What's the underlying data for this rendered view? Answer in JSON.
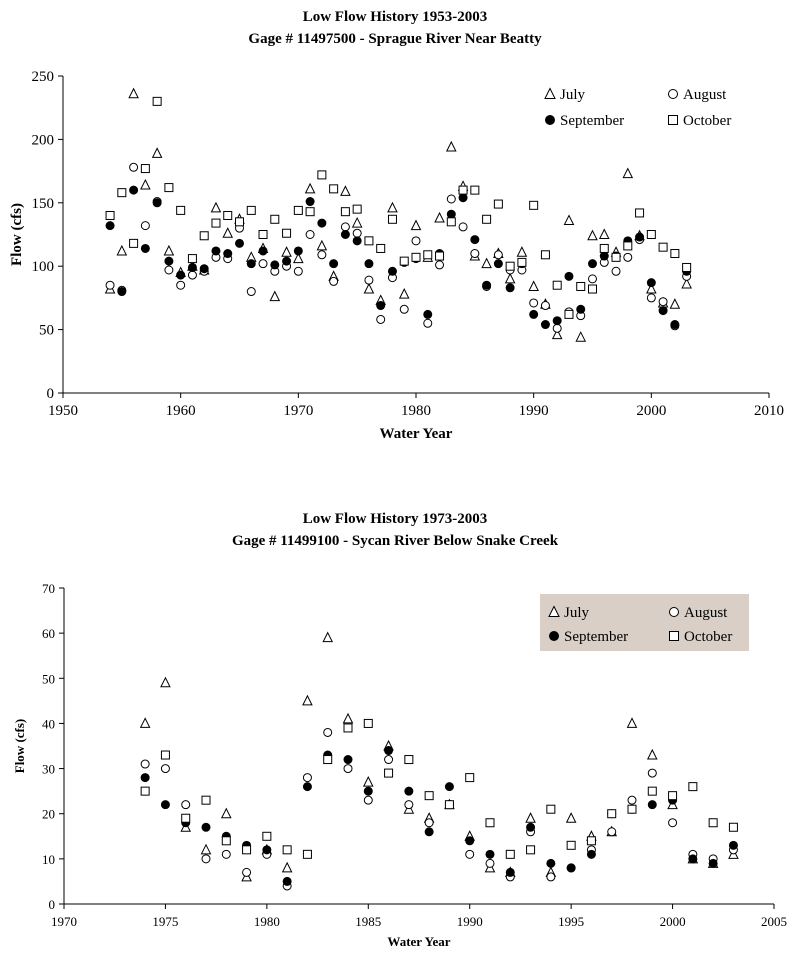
{
  "chart_data": [
    {
      "type": "scatter",
      "title": "Low Flow History 1953-2003",
      "subtitle": "Gage # 11497500 - Sprague River Near Beatty",
      "xlabel": "Water Year",
      "ylabel": "Flow (cfs)",
      "xlim": [
        1950,
        2010
      ],
      "ylim": [
        0,
        250
      ],
      "xticks": [
        1950,
        1960,
        1970,
        1980,
        1990,
        2000,
        2010
      ],
      "yticks": [
        0,
        50,
        100,
        150,
        200,
        250
      ],
      "grid": false,
      "legend": "top-right",
      "series": [
        {
          "name": "July",
          "marker": "triangle",
          "x": [
            1954,
            1955,
            1956,
            1957,
            1958,
            1959,
            1960,
            1961,
            1962,
            1963,
            1964,
            1965,
            1966,
            1967,
            1968,
            1969,
            1970,
            1971,
            1972,
            1973,
            1974,
            1975,
            1976,
            1977,
            1978,
            1979,
            1980,
            1981,
            1982,
            1983,
            1984,
            1985,
            1986,
            1987,
            1988,
            1989,
            1990,
            1991,
            1992,
            1993,
            1994,
            1995,
            1996,
            1997,
            1998,
            1999,
            2000,
            2001,
            2002,
            2003
          ],
          "y": [
            82,
            112,
            236,
            164,
            189,
            112,
            95,
            100,
            97,
            146,
            126,
            137,
            107,
            114,
            76,
            111,
            106,
            161,
            116,
            92,
            159,
            134,
            82,
            73,
            146,
            78,
            132,
            107,
            138,
            194,
            163,
            108,
            102,
            110,
            90,
            111,
            84,
            70,
            46,
            136,
            44,
            124,
            125,
            111,
            173,
            124,
            82,
            71,
            70,
            86
          ]
        },
        {
          "name": "August",
          "marker": "circle",
          "x": [
            1954,
            1955,
            1956,
            1957,
            1958,
            1959,
            1960,
            1961,
            1962,
            1963,
            1964,
            1965,
            1966,
            1967,
            1968,
            1969,
            1970,
            1971,
            1972,
            1973,
            1974,
            1975,
            1976,
            1977,
            1978,
            1979,
            1980,
            1981,
            1982,
            1983,
            1984,
            1985,
            1986,
            1987,
            1988,
            1989,
            1990,
            1991,
            1992,
            1993,
            1994,
            1995,
            1996,
            1997,
            1998,
            1999,
            2000,
            2001,
            2002,
            2003
          ],
          "y": [
            85,
            81,
            178,
            132,
            151,
            97,
            85,
            93,
            96,
            107,
            106,
            130,
            80,
            102,
            96,
            100,
            96,
            125,
            109,
            88,
            131,
            126,
            89,
            58,
            91,
            66,
            120,
            55,
            101,
            153,
            131,
            110,
            84,
            109,
            97,
            97,
            71,
            69,
            51,
            64,
            61,
            90,
            103,
            96,
            107,
            121,
            75,
            72,
            53,
            92
          ]
        },
        {
          "name": "September",
          "marker": "filled-circle",
          "x": [
            1954,
            1955,
            1956,
            1957,
            1958,
            1959,
            1960,
            1961,
            1962,
            1963,
            1964,
            1965,
            1966,
            1967,
            1968,
            1969,
            1970,
            1971,
            1972,
            1973,
            1974,
            1975,
            1976,
            1977,
            1978,
            1979,
            1980,
            1981,
            1982,
            1983,
            1984,
            1985,
            1986,
            1987,
            1988,
            1989,
            1990,
            1991,
            1992,
            1993,
            1994,
            1995,
            1996,
            1997,
            1998,
            1999,
            2000,
            2001,
            2002,
            2003
          ],
          "y": [
            132,
            80,
            160,
            114,
            150,
            104,
            93,
            99,
            98,
            112,
            110,
            118,
            102,
            112,
            101,
            104,
            112,
            151,
            134,
            102,
            125,
            120,
            102,
            69,
            96,
            103,
            106,
            62,
            110,
            141,
            154,
            121,
            85,
            102,
            83,
            102,
            62,
            54,
            57,
            92,
            66,
            102,
            108,
            108,
            120,
            123,
            87,
            65,
            54,
            96
          ]
        },
        {
          "name": "October",
          "marker": "square",
          "x": [
            1954,
            1955,
            1956,
            1957,
            1958,
            1959,
            1960,
            1961,
            1962,
            1963,
            1964,
            1965,
            1966,
            1967,
            1968,
            1969,
            1970,
            1971,
            1972,
            1973,
            1974,
            1975,
            1976,
            1977,
            1978,
            1979,
            1980,
            1981,
            1982,
            1983,
            1984,
            1985,
            1986,
            1987,
            1988,
            1989,
            1990,
            1991,
            1992,
            1993,
            1994,
            1995,
            1996,
            1997,
            1998,
            1999,
            2000,
            2001,
            2002,
            2003
          ],
          "y": [
            140,
            158,
            118,
            177,
            230,
            162,
            144,
            106,
            124,
            134,
            140,
            135,
            144,
            125,
            137,
            126,
            144,
            143,
            172,
            161,
            143,
            145,
            120,
            114,
            137,
            104,
            107,
            109,
            108,
            135,
            160,
            160,
            137,
            149,
            100,
            103,
            148,
            109,
            85,
            62,
            84,
            82,
            114,
            107,
            116,
            142,
            125,
            115,
            110,
            99
          ]
        }
      ]
    },
    {
      "type": "scatter",
      "title": "Low Flow History 1973-2003",
      "subtitle": "Gage # 11499100 - Sycan River Below Snake Creek",
      "xlabel": "Water Year",
      "ylabel": "Flow (cfs)",
      "xlim": [
        1970,
        2005
      ],
      "ylim": [
        0,
        70
      ],
      "xticks": [
        1970,
        1975,
        1980,
        1985,
        1990,
        1995,
        2000,
        2005
      ],
      "yticks": [
        0,
        10,
        20,
        30,
        40,
        50,
        60,
        70
      ],
      "grid": false,
      "legend": "top-right",
      "legend_bg": "#d9cfc7",
      "series": [
        {
          "name": "July",
          "marker": "triangle",
          "x": [
            1974,
            1975,
            1976,
            1977,
            1978,
            1979,
            1980,
            1981,
            1982,
            1983,
            1984,
            1985,
            1986,
            1987,
            1988,
            1989,
            1990,
            1991,
            1992,
            1993,
            1994,
            1995,
            1996,
            1997,
            1998,
            1999,
            2000,
            2001,
            2002,
            2003
          ],
          "y": [
            40,
            49,
            17,
            12,
            20,
            6,
            12,
            8,
            45,
            59,
            41,
            27,
            35,
            21,
            19,
            22,
            15,
            8,
            7,
            19,
            7,
            19,
            15,
            16,
            40,
            33,
            22,
            10,
            9,
            11
          ]
        },
        {
          "name": "August",
          "marker": "circle",
          "x": [
            1974,
            1975,
            1976,
            1977,
            1978,
            1979,
            1980,
            1981,
            1982,
            1983,
            1984,
            1985,
            1986,
            1987,
            1988,
            1989,
            1990,
            1991,
            1992,
            1993,
            1994,
            1995,
            1996,
            1997,
            1998,
            1999,
            2000,
            2001,
            2002,
            2003
          ],
          "y": [
            31,
            30,
            22,
            10,
            11,
            7,
            11,
            4,
            28,
            38,
            30,
            23,
            32,
            22,
            18,
            22,
            11,
            9,
            6,
            16,
            6,
            8,
            12,
            16,
            23,
            29,
            18,
            11,
            10,
            12
          ]
        },
        {
          "name": "September",
          "marker": "filled-circle",
          "x": [
            1974,
            1975,
            1976,
            1977,
            1978,
            1979,
            1980,
            1981,
            1982,
            1983,
            1984,
            1985,
            1986,
            1987,
            1988,
            1989,
            1990,
            1991,
            1992,
            1993,
            1994,
            1995,
            1996,
            1997,
            1998,
            1999,
            2000,
            2001,
            2002,
            2003
          ],
          "y": [
            28,
            22,
            18,
            17,
            15,
            13,
            12,
            5,
            26,
            33,
            32,
            25,
            34,
            25,
            16,
            26,
            14,
            11,
            7,
            17,
            9,
            8,
            11,
            20,
            21,
            22,
            23,
            10,
            9,
            13
          ]
        },
        {
          "name": "October",
          "marker": "square",
          "x": [
            1974,
            1975,
            1976,
            1977,
            1978,
            1979,
            1980,
            1981,
            1982,
            1983,
            1984,
            1985,
            1986,
            1987,
            1988,
            1989,
            1990,
            1991,
            1992,
            1993,
            1994,
            1995,
            1996,
            1997,
            1998,
            1999,
            2000,
            2001,
            2002,
            2003
          ],
          "y": [
            25,
            33,
            19,
            23,
            14,
            12,
            15,
            12,
            11,
            32,
            39,
            40,
            29,
            32,
            24,
            22,
            28,
            18,
            11,
            12,
            21,
            13,
            14,
            20,
            21,
            25,
            24,
            26,
            18,
            17
          ]
        }
      ]
    }
  ]
}
